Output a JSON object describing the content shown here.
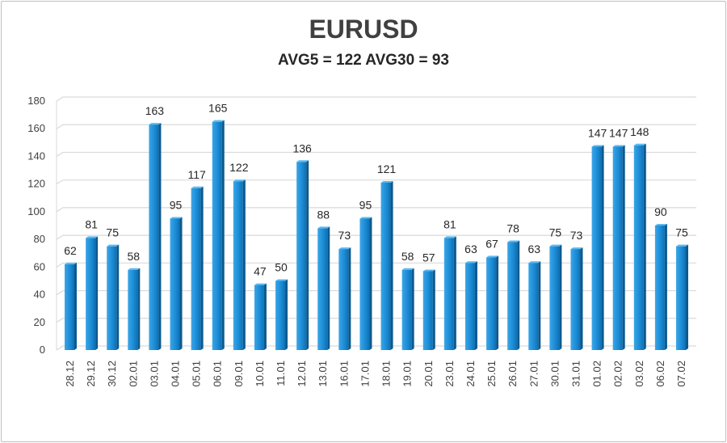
{
  "chart_data": {
    "type": "bar",
    "title": "EURUSD",
    "subtitle": "AVG5 = 122 AVG30 = 93",
    "xlabel": "",
    "ylabel": "",
    "ylim": [
      0,
      180
    ],
    "yticks": [
      0,
      20,
      40,
      60,
      80,
      100,
      120,
      140,
      160,
      180
    ],
    "grid": true,
    "legend": "none",
    "bar_color": "#1f8fd6",
    "categories": [
      "28.12",
      "29.12",
      "30.12",
      "02.01",
      "03.01",
      "04.01",
      "05.01",
      "06.01",
      "09.01",
      "10.01",
      "11.01",
      "12.01",
      "13.01",
      "16.01",
      "17.01",
      "18.01",
      "19.01",
      "20.01",
      "23.01",
      "24.01",
      "25.01",
      "26.01",
      "27.01",
      "30.01",
      "31.01",
      "01.02",
      "02.02",
      "03.02",
      "06.02",
      "07.02"
    ],
    "values": [
      62,
      81,
      75,
      58,
      163,
      95,
      117,
      165,
      122,
      47,
      50,
      136,
      88,
      73,
      95,
      121,
      58,
      57,
      81,
      63,
      67,
      78,
      63,
      75,
      73,
      147,
      147,
      148,
      90,
      75
    ]
  }
}
